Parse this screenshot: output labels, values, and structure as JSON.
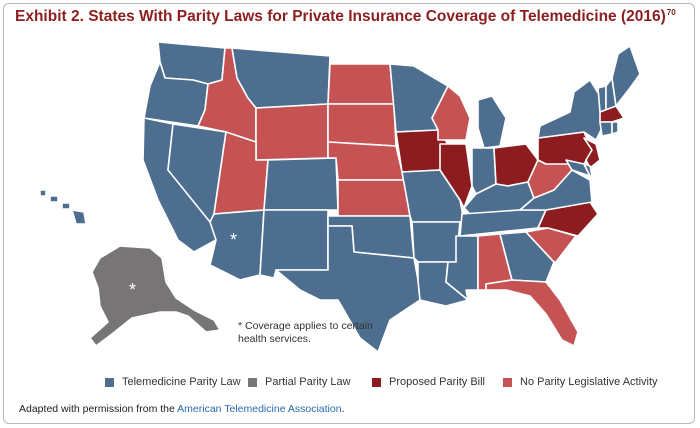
{
  "title": {
    "text": "Exhibit 2. States With Parity Laws for Private Insurance Coverage of Telemedicine (2016)",
    "footnote": "70"
  },
  "colors": {
    "telemedicine_parity_law": "#4d6e8f",
    "partial_parity_law": "#787576",
    "proposed_parity_bill": "#8c1c1f",
    "no_parity_activity": "#c65353",
    "title": "#8c1f1f",
    "link": "#2a6ab0"
  },
  "map": {
    "asterisk": "*",
    "note": "* Coverage applies to certain health services."
  },
  "legend": [
    {
      "key": "telemedicine_parity_law",
      "label": "Telemedicine Parity Law"
    },
    {
      "key": "partial_parity_law",
      "label": "Partial Parity Law"
    },
    {
      "key": "proposed_parity_bill",
      "label": "Proposed Parity Bill"
    },
    {
      "key": "no_parity_activity",
      "label": "No Parity Legislative Activity"
    }
  ],
  "source": {
    "prefix": "Adapted with permission from the ",
    "link_text": "American Telemedicine Association",
    "suffix": "."
  },
  "states": {
    "WA": "telemedicine_parity_law",
    "OR": "telemedicine_parity_law",
    "CA": "telemedicine_parity_law",
    "NV": "telemedicine_parity_law",
    "ID": "no_parity_activity",
    "MT": "telemedicine_parity_law",
    "WY": "no_parity_activity",
    "UT": "no_parity_activity",
    "AZ": "telemedicine_parity_law",
    "CO": "telemedicine_parity_law",
    "NM": "telemedicine_parity_law",
    "ND": "no_parity_activity",
    "SD": "no_parity_activity",
    "NE": "no_parity_activity",
    "KS": "no_parity_activity",
    "OK": "telemedicine_parity_law",
    "TX": "telemedicine_parity_law",
    "MN": "telemedicine_parity_law",
    "IA": "proposed_parity_bill",
    "MO": "telemedicine_parity_law",
    "AR": "telemedicine_parity_law",
    "LA": "telemedicine_parity_law",
    "WI": "no_parity_activity",
    "IL": "proposed_parity_bill",
    "MI": "telemedicine_parity_law",
    "IN": "telemedicine_parity_law",
    "OH": "proposed_parity_bill",
    "KY": "telemedicine_parity_law",
    "TN": "telemedicine_parity_law",
    "MS": "telemedicine_parity_law",
    "AL": "no_parity_activity",
    "GA": "telemedicine_parity_law",
    "FL": "no_parity_activity",
    "SC": "no_parity_activity",
    "NC": "proposed_parity_bill",
    "VA": "telemedicine_parity_law",
    "WV": "no_parity_activity",
    "PA": "proposed_parity_bill",
    "NY": "telemedicine_parity_law",
    "NJ": "proposed_parity_bill",
    "DE": "telemedicine_parity_law",
    "MD": "telemedicine_parity_law",
    "VT": "telemedicine_parity_law",
    "NH": "telemedicine_parity_law",
    "ME": "telemedicine_parity_law",
    "MA": "proposed_parity_bill",
    "CT": "telemedicine_parity_law",
    "RI": "telemedicine_parity_law",
    "AK": "partial_parity_law",
    "HI": "telemedicine_parity_law"
  }
}
